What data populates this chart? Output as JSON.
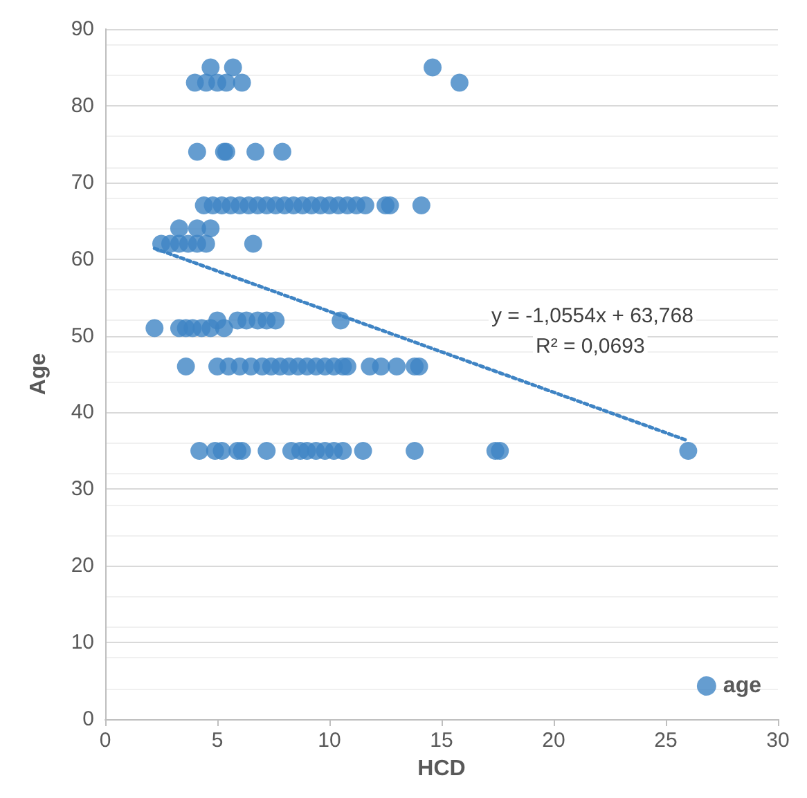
{
  "chart_data": {
    "type": "scatter",
    "xlabel": "HCD",
    "ylabel": "Age",
    "xlim": [
      0,
      30
    ],
    "xticks": [
      0,
      5,
      10,
      15,
      20,
      25,
      30
    ],
    "ylim": [
      0,
      90
    ],
    "yticks": [
      0,
      10,
      20,
      30,
      40,
      50,
      60,
      70,
      80,
      90
    ],
    "grid": "y",
    "legend": "bottom right",
    "annotations": [
      "y = -1,0554x + 63,768",
      "R² = 0,0693"
    ],
    "series": [
      {
        "name": "age",
        "color": "#3f84c4",
        "marker": "circle",
        "x": [
          4.7,
          5.7,
          14.6,
          4.0,
          4.5,
          5.0,
          5.4,
          6.1,
          15.8,
          4.1,
          5.3,
          5.4,
          6.7,
          7.9,
          4.4,
          4.8,
          5.2,
          5.6,
          6.0,
          6.4,
          6.8,
          7.2,
          7.6,
          8.0,
          8.4,
          8.8,
          9.2,
          9.6,
          10.0,
          10.4,
          10.8,
          11.2,
          11.6,
          12.5,
          12.7,
          14.1,
          3.3,
          4.1,
          4.7,
          2.5,
          2.9,
          3.3,
          3.7,
          4.1,
          4.5,
          6.6,
          5.0,
          5.9,
          6.3,
          6.8,
          7.2,
          7.6,
          10.5,
          2.2,
          3.3,
          3.6,
          3.9,
          4.3,
          4.7,
          5.3,
          3.6,
          5.0,
          5.5,
          6.0,
          6.5,
          7.0,
          7.4,
          7.8,
          8.2,
          8.6,
          9.0,
          9.4,
          9.8,
          10.2,
          10.6,
          10.8,
          11.8,
          12.3,
          13.0,
          13.8,
          14.0,
          4.2,
          4.9,
          5.2,
          5.9,
          6.1,
          7.2,
          8.3,
          8.7,
          9.0,
          9.4,
          9.8,
          10.2,
          10.6,
          11.5,
          13.8,
          17.4,
          17.6,
          26.0
        ],
        "values": [
          85,
          85,
          85,
          83,
          83,
          83,
          83,
          83,
          83,
          74,
          74,
          74,
          74,
          74,
          67,
          67,
          67,
          67,
          67,
          67,
          67,
          67,
          67,
          67,
          67,
          67,
          67,
          67,
          67,
          67,
          67,
          67,
          67,
          67,
          67,
          67,
          64,
          64,
          64,
          62,
          62,
          62,
          62,
          62,
          62,
          62,
          52,
          52,
          52,
          52,
          52,
          52,
          52,
          51,
          51,
          51,
          51,
          51,
          51,
          51,
          46,
          46,
          46,
          46,
          46,
          46,
          46,
          46,
          46,
          46,
          46,
          46,
          46,
          46,
          46,
          46,
          46,
          46,
          46,
          46,
          46,
          35,
          35,
          35,
          35,
          35,
          35,
          35,
          35,
          35,
          35,
          35,
          35,
          35,
          35,
          35,
          35,
          35,
          35
        ]
      },
      {
        "type": "line",
        "color": "#3f84c4",
        "line_style": "dotted",
        "marker": "none",
        "x": [
          2.2,
          26.0
        ],
        "values": [
          61.4,
          36.3
        ]
      }
    ]
  }
}
